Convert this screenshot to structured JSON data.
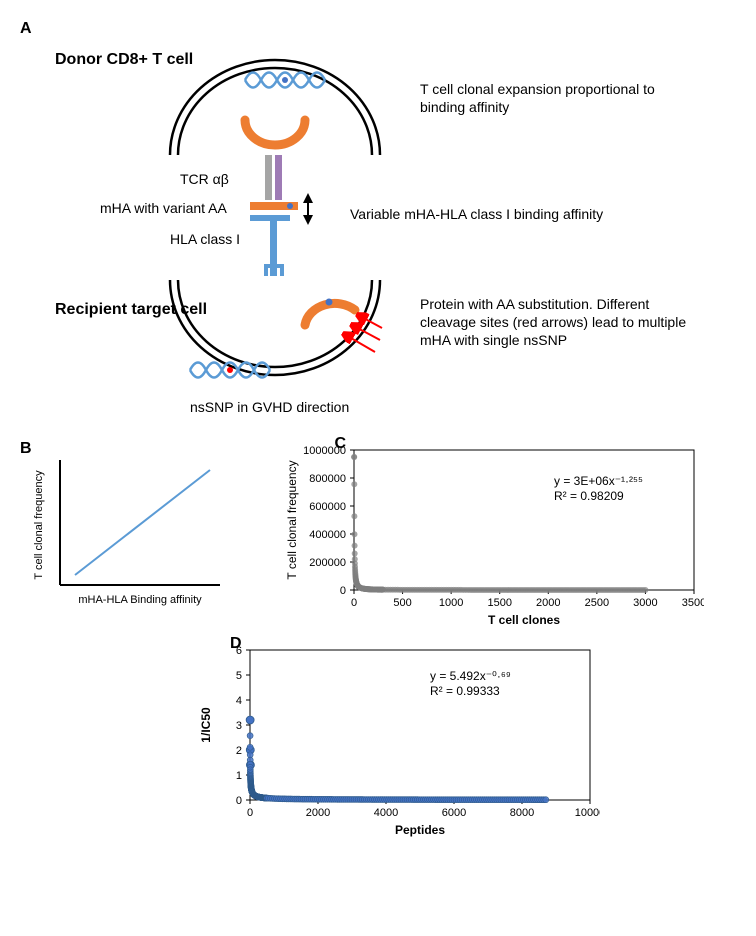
{
  "panelA": {
    "label": "A",
    "donor_label": "Donor CD8+ T cell",
    "recipient_label": "Recipient target cell",
    "tcr_label": "TCR αβ",
    "mha_label": "mHA with variant  AA",
    "hla_label": "HLA class I",
    "right_text_1": "T cell clonal expansion proportional to binding affinity",
    "right_text_2": "Variable mHA-HLA class I binding affinity",
    "right_text_3": "Protein with AA substitution. Different cleavage sites (red arrows) lead to multiple mHA with single nsSNP",
    "bottom_text": "nsSNP in GVHD direction",
    "colors": {
      "dna": "#5b9bd5",
      "cell_stroke": "#000000",
      "protein": "#ed7d31",
      "mha_peptide": "#ed7d31",
      "hla": "#5b9bd5",
      "tcr_left": "#a5a5a5",
      "tcr_right": "#9e7bb5",
      "snp_dot": "#ff0000",
      "donor_dot": "#4472c4",
      "red_arrow": "#ff0000",
      "black_arrow": "#000000"
    }
  },
  "panelB": {
    "label": "B",
    "x_label": "mHA-HLA Binding affinity",
    "y_label": "T cell clonal frequency",
    "line_color": "#5b9bd5",
    "axis_color": "#000000",
    "line_points": [
      [
        15,
        140
      ],
      [
        175,
        25
      ]
    ]
  },
  "panelC": {
    "label": "C",
    "x_label": "T cell clones",
    "y_label": "T cell clonal frequency",
    "equation": "y = 3E+06x⁻¹·²⁵⁵",
    "r2": "R² = 0.98209",
    "x_ticks": [
      0,
      500,
      1000,
      1500,
      2000,
      2500,
      3000,
      3500
    ],
    "y_ticks": [
      0,
      200000,
      400000,
      600000,
      800000,
      1000000
    ],
    "xlim": [
      0,
      3500
    ],
    "ylim": [
      0,
      1000000
    ],
    "axis_color": "#000000",
    "plot_bg": "#ffffff",
    "marker_color": "#7f7f7f",
    "marker_size": 3,
    "power_fit": {
      "a": 3000000,
      "b": -1.255
    },
    "n_points": 3000
  },
  "panelD": {
    "label": "D",
    "x_label": "Peptides",
    "y_label": "1/IC50",
    "equation": "y = 5.492x⁻⁰·⁶⁹",
    "r2": "R² = 0.99333",
    "x_ticks": [
      0,
      2000,
      4000,
      6000,
      8000,
      10000
    ],
    "y_ticks": [
      0,
      1,
      2,
      3,
      4,
      5,
      6
    ],
    "xlim": [
      0,
      10000
    ],
    "ylim": [
      0,
      6
    ],
    "axis_color": "#000000",
    "plot_bg": "#ffffff",
    "marker_fill": "#4472c4",
    "marker_stroke": "#2e5a8a",
    "marker_size": 3,
    "power_fit": {
      "a": 5.492,
      "b": -0.69
    },
    "n_points": 8700,
    "outliers": [
      3.2,
      2.0,
      1.4
    ]
  },
  "typography": {
    "body_font": "Arial",
    "label_fontsize_pt": 12,
    "panel_label_fontsize_pt": 16,
    "tick_fontsize_pt": 11
  }
}
